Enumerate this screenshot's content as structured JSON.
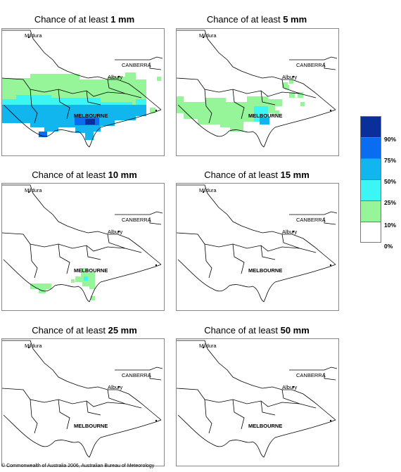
{
  "panels": [
    {
      "prefix": "Chance of at least ",
      "amount": "1 mm"
    },
    {
      "prefix": "Chance of at least ",
      "amount": "5 mm"
    },
    {
      "prefix": "Chance of at least ",
      "amount": "10 mm"
    },
    {
      "prefix": "Chance of at least ",
      "amount": "15 mm"
    },
    {
      "prefix": "Chance of at least ",
      "amount": "25 mm"
    },
    {
      "prefix": "Chance of at least ",
      "amount": "50 mm"
    }
  ],
  "places": {
    "mildura": "Mildura",
    "canberra": "CANBERRA",
    "albury": "Albury",
    "melbourne": "MELBOURNE"
  },
  "legend": {
    "colors": [
      "#0a2f9a",
      "#0a6cf0",
      "#12b6ee",
      "#3cf5f5",
      "#96f598",
      "#ffffff"
    ],
    "labels": [
      "90%",
      "75%",
      "50%",
      "25%",
      "10%",
      "0%"
    ]
  },
  "copyright": "© Commonwealth of Australia 2006, Australian Bureau of Meteorology"
}
